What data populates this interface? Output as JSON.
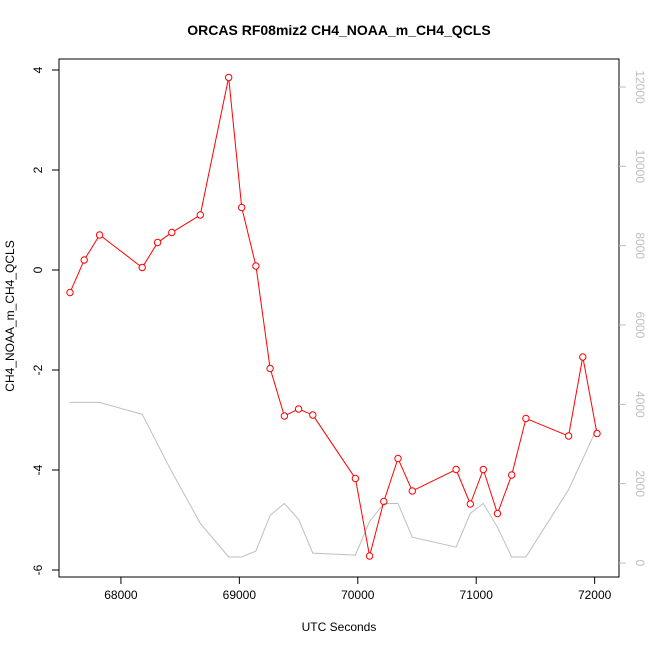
{
  "chart_data": {
    "type": "line",
    "title": "ORCAS RF08miz2 CH4_NOAA_m_CH4_QCLS",
    "xlabel": "UTC Seconds",
    "ylabel": "CH4_NOAA_m_CH4_QCLS",
    "xlim": [
      67500,
      72250
    ],
    "ylim": [
      -6.0,
      4.0
    ],
    "y2lim": [
      0,
      12000
    ],
    "x_ticks": [
      68000,
      69000,
      70000,
      71000,
      72000
    ],
    "y_ticks": [
      -6,
      -4,
      -2,
      0,
      2,
      4
    ],
    "y2_ticks": [
      0,
      2000,
      4000,
      6000,
      8000,
      10000,
      12000
    ],
    "grid": false,
    "series": [
      {
        "color": "#ff0000",
        "marker": "open-circle",
        "points": [
          [
            67570,
            -0.45
          ],
          [
            67690,
            0.2
          ],
          [
            67820,
            0.7
          ],
          [
            68180,
            0.05
          ],
          [
            68310,
            0.55
          ],
          [
            68430,
            0.75
          ],
          [
            68670,
            1.1
          ],
          [
            68910,
            3.85
          ],
          [
            69020,
            1.25
          ],
          [
            69140,
            0.08
          ],
          [
            69260,
            -1.97
          ],
          [
            69380,
            -2.92
          ],
          [
            69500,
            -2.78
          ],
          [
            69620,
            -2.9
          ],
          [
            69980,
            -4.17
          ],
          [
            70100,
            -5.72
          ],
          [
            70220,
            -4.63
          ],
          [
            70340,
            -3.77
          ],
          [
            70460,
            -4.42
          ],
          [
            70830,
            -3.99
          ],
          [
            70950,
            -4.68
          ],
          [
            71060,
            -3.99
          ],
          [
            71180,
            -4.87
          ],
          [
            71300,
            -4.1
          ],
          [
            71420,
            -2.97
          ],
          [
            71780,
            -3.32
          ],
          [
            71900,
            -1.74
          ],
          [
            72020,
            -3.27
          ]
        ]
      },
      {
        "color": "#bebebe",
        "axis": "right",
        "points": [
          [
            67570,
            4050
          ],
          [
            67820,
            4050
          ],
          [
            68180,
            3750
          ],
          [
            68430,
            2300
          ],
          [
            68670,
            1000
          ],
          [
            68910,
            150
          ],
          [
            69020,
            150
          ],
          [
            69140,
            300
          ],
          [
            69260,
            1200
          ],
          [
            69380,
            1500
          ],
          [
            69500,
            1100
          ],
          [
            69620,
            250
          ],
          [
            69980,
            200
          ],
          [
            70100,
            1050
          ],
          [
            70220,
            1500
          ],
          [
            70340,
            1500
          ],
          [
            70460,
            650
          ],
          [
            70830,
            400
          ],
          [
            70950,
            1250
          ],
          [
            71060,
            1500
          ],
          [
            71180,
            900
          ],
          [
            71300,
            150
          ],
          [
            71420,
            150
          ],
          [
            71780,
            1850
          ],
          [
            72020,
            3400
          ]
        ]
      }
    ]
  }
}
